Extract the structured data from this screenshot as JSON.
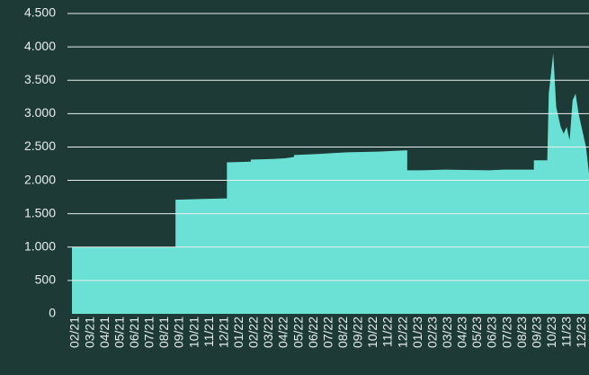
{
  "chart_data": {
    "type": "area",
    "color": "#6be0d5",
    "grid": true,
    "x": [
      0,
      6.95,
      6.95,
      8.5,
      10.4,
      10.4,
      12.0,
      12.0,
      13.5,
      14.3,
      14.9,
      14.9,
      16.0,
      16.9,
      17.6,
      18.5,
      19.5,
      20.5,
      21.5,
      22.5,
      22.5,
      23.5,
      25.0,
      26.5,
      28.0,
      29.0,
      30.0,
      31.0,
      31.0,
      31.9,
      32.0,
      32.3,
      32.5,
      32.8,
      33.0,
      33.2,
      33.4,
      33.6,
      33.8,
      34.0,
      34.3,
      34.5,
      34.7
    ],
    "values": [
      1000,
      1000,
      1710,
      1720,
      1730,
      2270,
      2280,
      2310,
      2320,
      2330,
      2350,
      2380,
      2390,
      2400,
      2410,
      2420,
      2425,
      2430,
      2440,
      2450,
      2150,
      2150,
      2160,
      2155,
      2150,
      2160,
      2160,
      2160,
      2300,
      2300,
      3300,
      3900,
      3100,
      2800,
      2700,
      2800,
      2600,
      3200,
      3300,
      3000,
      2700,
      2500,
      2100
    ],
    "xlim": [
      0,
      34.7
    ],
    "xticks": [
      {
        "value": 0,
        "label": "02/21"
      },
      {
        "value": 1,
        "label": "03/21"
      },
      {
        "value": 2,
        "label": "04/21"
      },
      {
        "value": 3,
        "label": "05/21"
      },
      {
        "value": 4,
        "label": "06/21"
      },
      {
        "value": 5,
        "label": "07/21"
      },
      {
        "value": 6,
        "label": "08/21"
      },
      {
        "value": 7,
        "label": "09/21"
      },
      {
        "value": 8,
        "label": "10/21"
      },
      {
        "value": 9,
        "label": "11/21"
      },
      {
        "value": 10,
        "label": "12/21"
      },
      {
        "value": 11,
        "label": "01/22"
      },
      {
        "value": 12,
        "label": "02/22"
      },
      {
        "value": 13,
        "label": "03/22"
      },
      {
        "value": 14,
        "label": "04/22"
      },
      {
        "value": 15,
        "label": "05/22"
      },
      {
        "value": 16,
        "label": "06/22"
      },
      {
        "value": 17,
        "label": "07/22"
      },
      {
        "value": 18,
        "label": "08/22"
      },
      {
        "value": 19,
        "label": "09/22"
      },
      {
        "value": 20,
        "label": "10/22"
      },
      {
        "value": 21,
        "label": "11/22"
      },
      {
        "value": 22,
        "label": "12/22"
      },
      {
        "value": 23,
        "label": "01/23"
      },
      {
        "value": 24,
        "label": "02/23"
      },
      {
        "value": 25,
        "label": "03/23"
      },
      {
        "value": 26,
        "label": "04/23"
      },
      {
        "value": 27,
        "label": "05/23"
      },
      {
        "value": 28,
        "label": "06/23"
      },
      {
        "value": 29,
        "label": "07/23"
      },
      {
        "value": 30,
        "label": "08/23"
      },
      {
        "value": 31,
        "label": "09/23"
      },
      {
        "value": 32,
        "label": "10/23"
      },
      {
        "value": 33,
        "label": "11/23"
      },
      {
        "value": 34,
        "label": "12/23"
      }
    ],
    "ylim": [
      0,
      4500
    ],
    "yticks": [
      0,
      500,
      {
        "value": 1000,
        "label": "1.000"
      },
      {
        "value": 1500,
        "label": "1.500"
      },
      {
        "value": 2000,
        "label": "2.000"
      },
      {
        "value": 2500,
        "label": "2.500"
      },
      {
        "value": 3000,
        "label": "3.000"
      },
      {
        "value": 3500,
        "label": "3.500"
      },
      {
        "value": 4000,
        "label": "4.000"
      },
      {
        "value": 4500,
        "label": "4.500"
      }
    ]
  }
}
